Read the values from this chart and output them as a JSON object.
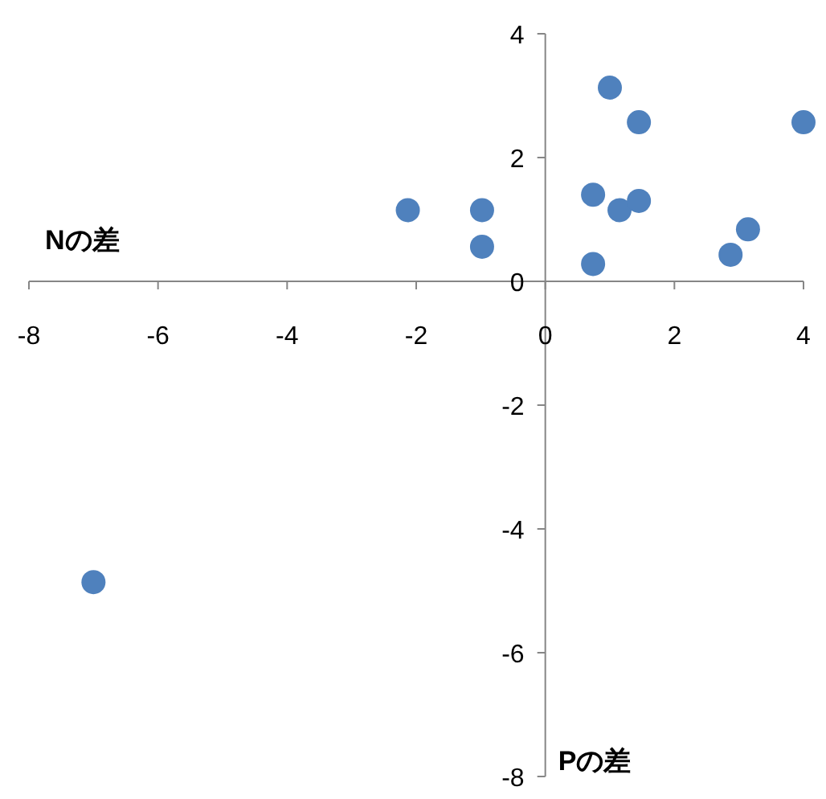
{
  "chart_data": {
    "type": "scatter",
    "xlabel": "Nの差",
    "ylabel": "Pの差",
    "marker": "circle",
    "xlim": [
      -8,
      4
    ],
    "ylim": [
      -8,
      4
    ],
    "xticks": [
      -8,
      -6,
      -4,
      -2,
      0,
      2,
      4
    ],
    "yticks": [
      -8,
      -6,
      -4,
      -2,
      0,
      2,
      4
    ],
    "series": [
      {
        "color": "#4f81bd",
        "x": [
          -7,
          -2.13,
          -0.98,
          -0.98,
          0.74,
          0.74,
          1.0,
          1.15,
          1.45,
          1.45,
          2.87,
          3.14,
          4.0
        ],
        "values": [
          -4.86,
          1.15,
          1.15,
          0.56,
          1.4,
          0.28,
          3.13,
          1.15,
          1.3,
          2.57,
          0.43,
          0.84,
          2.57
        ]
      }
    ]
  }
}
